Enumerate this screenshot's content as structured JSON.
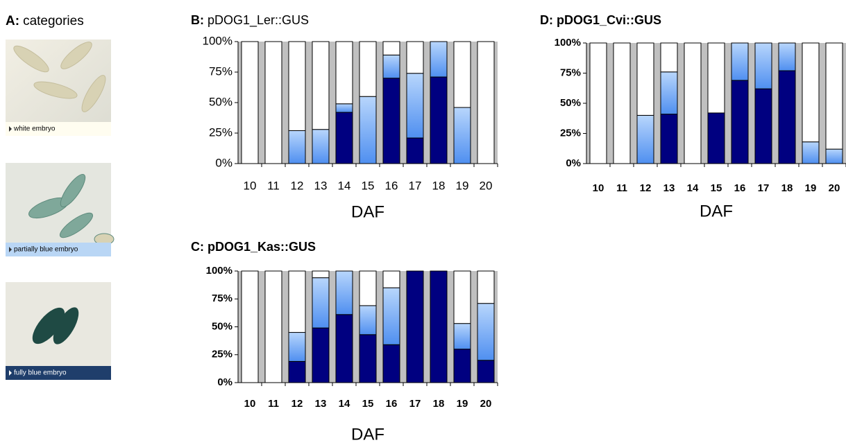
{
  "panel_a": {
    "label": "A:",
    "title": "categories"
  },
  "chart_data": [
    {
      "type": "bar",
      "stacked": true,
      "label": "B:",
      "title": "pDOG1_Ler::GUS",
      "x_label": "DAF",
      "categories": [
        "10",
        "11",
        "12",
        "13",
        "14",
        "15",
        "16",
        "17",
        "18",
        "19",
        "20"
      ],
      "series": [
        {
          "name": "fully blue embryo",
          "color": "#000080",
          "values": [
            0,
            0,
            0,
            0,
            42,
            0,
            70,
            21,
            71,
            0,
            0
          ]
        },
        {
          "name": "partially blue embryo",
          "color": "#4f8ff0",
          "values": [
            0,
            0,
            27,
            28,
            7,
            55,
            19,
            53,
            29,
            46,
            0
          ]
        },
        {
          "name": "white embryo",
          "color": "#ffffff",
          "values": [
            100,
            100,
            73,
            72,
            51,
            45,
            11,
            26,
            0,
            54,
            100
          ]
        }
      ],
      "ylim": [
        0,
        100
      ],
      "yticks": [
        {
          "value": 0,
          "label": "0%"
        },
        {
          "value": 25,
          "label": "25%"
        },
        {
          "value": 50,
          "label": "50%"
        },
        {
          "value": 75,
          "label": "75%"
        },
        {
          "value": 100,
          "label": "100%"
        }
      ]
    },
    {
      "type": "bar",
      "stacked": true,
      "label": "C:",
      "title": "pDOG1_Kas::GUS",
      "x_label": "DAF",
      "categories": [
        "10",
        "11",
        "12",
        "13",
        "14",
        "15",
        "16",
        "17",
        "18",
        "19",
        "20"
      ],
      "series": [
        {
          "name": "fully blue embryo",
          "color": "#000080",
          "values": [
            0,
            0,
            19,
            49,
            61,
            43,
            34,
            100,
            100,
            30,
            20
          ]
        },
        {
          "name": "partially blue embryo",
          "color": "#4f8ff0",
          "values": [
            0,
            0,
            26,
            45,
            39,
            26,
            51,
            0,
            0,
            23,
            51
          ]
        },
        {
          "name": "white embryo",
          "color": "#ffffff",
          "values": [
            100,
            100,
            55,
            6,
            0,
            31,
            15,
            0,
            0,
            47,
            29
          ]
        }
      ],
      "ylim": [
        0,
        100
      ],
      "yticks": [
        {
          "value": 0,
          "label": "0%"
        },
        {
          "value": 25,
          "label": "25%"
        },
        {
          "value": 50,
          "label": "50%"
        },
        {
          "value": 75,
          "label": "75%"
        },
        {
          "value": 100,
          "label": "100%"
        }
      ]
    },
    {
      "type": "bar",
      "stacked": true,
      "label": "D:",
      "title": "pDOG1_Cvi::GUS",
      "x_label": "DAF",
      "categories": [
        "10",
        "11",
        "12",
        "13",
        "14",
        "15",
        "16",
        "17",
        "18",
        "19",
        "20"
      ],
      "series": [
        {
          "name": "fully blue embryo",
          "color": "#000080",
          "values": [
            0,
            0,
            0,
            41,
            0,
            42,
            69,
            62,
            77,
            0,
            0
          ]
        },
        {
          "name": "partially blue embryo",
          "color": "#4f8ff0",
          "values": [
            0,
            0,
            40,
            35,
            0,
            0,
            31,
            38,
            23,
            18,
            12
          ]
        },
        {
          "name": "white embryo",
          "color": "#ffffff",
          "values": [
            100,
            100,
            60,
            24,
            100,
            58,
            0,
            0,
            0,
            82,
            88
          ]
        }
      ],
      "ylim": [
        0,
        100
      ],
      "yticks": [
        {
          "value": 0,
          "label": "0%"
        },
        {
          "value": 25,
          "label": "25%"
        },
        {
          "value": 50,
          "label": "50%"
        },
        {
          "value": 75,
          "label": "75%"
        },
        {
          "value": 100,
          "label": "100%"
        }
      ]
    }
  ]
}
